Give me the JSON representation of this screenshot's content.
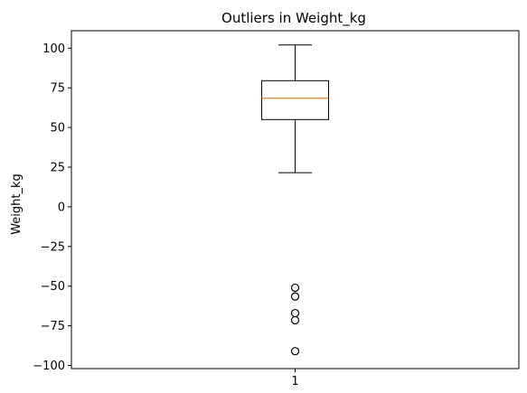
{
  "chart_data": {
    "type": "boxplot",
    "title": "Outliers in Weight_kg",
    "ylabel": "Weight_kg",
    "xlabel": "",
    "categories": [
      "1"
    ],
    "ylim": [
      -102,
      111
    ],
    "yticks": [
      100,
      75,
      50,
      25,
      0,
      -25,
      -50,
      -75,
      -100
    ],
    "ytick_labels": [
      "100",
      "75",
      "50",
      "25",
      "0",
      "−25",
      "−50",
      "−75",
      "−100"
    ],
    "boxes": [
      {
        "category": "1",
        "whisker_low": 21.5,
        "q1": 55,
        "median": 68.5,
        "q3": 79.5,
        "whisker_high": 102,
        "outliers": [
          -51,
          -56.5,
          -67,
          -71.5,
          -91
        ]
      }
    ],
    "colors": {
      "box": "#000000",
      "median": "#ff7f0e",
      "background": "#ffffff"
    },
    "grid": false
  }
}
